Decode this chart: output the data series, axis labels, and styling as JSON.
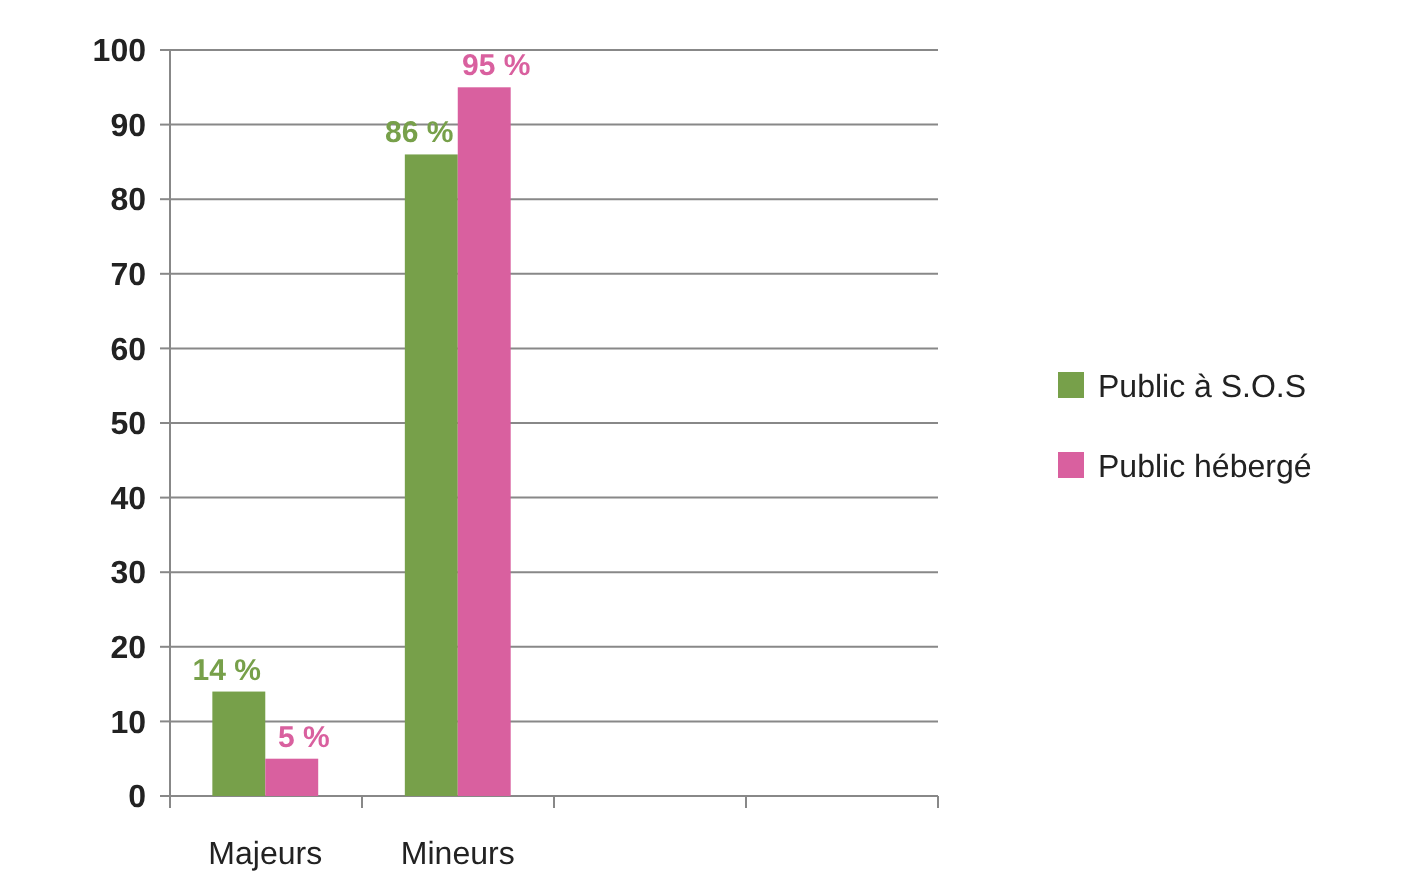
{
  "chart_data": {
    "type": "bar",
    "categories": [
      "Majeurs",
      "Mineurs",
      null,
      null
    ],
    "series": [
      {
        "name": "Public à S.O.S",
        "color": "#77a04a",
        "values": [
          14,
          86,
          null,
          null
        ],
        "value_labels": [
          "14 %",
          "86 %",
          null,
          null
        ]
      },
      {
        "name": "Public hébergé",
        "color": "#d9609f",
        "values": [
          5,
          95,
          null,
          null
        ],
        "value_labels": [
          "5 %",
          "95 %",
          null,
          null
        ]
      }
    ],
    "ylim": [
      0,
      100
    ],
    "yticks": [
      0,
      10,
      20,
      30,
      40,
      50,
      60,
      70,
      80,
      90,
      100
    ],
    "grid": "y",
    "legend": "right"
  }
}
